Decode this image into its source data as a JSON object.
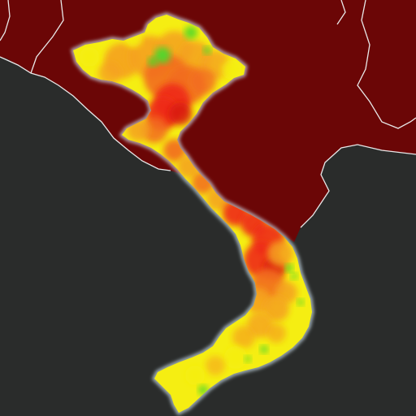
{
  "map": {
    "colors": {
      "sea": "#2a2c2b",
      "neighbor_land": "#6b0606",
      "neighbor_land_dark": "#5a0404",
      "border": "#e8e8e8",
      "coast_halo": "#cfe3ee",
      "heat_low_green": "#4fd82a",
      "heat_yellow": "#f5ee12",
      "heat_orange": "#f5a11e",
      "heat_dark_orange": "#f26b1e",
      "heat_red": "#ee2a17",
      "heat_deep_red": "#d81410"
    },
    "layers": [
      "sea",
      "neighboring-countries",
      "country-borders",
      "heat-overlay"
    ]
  }
}
